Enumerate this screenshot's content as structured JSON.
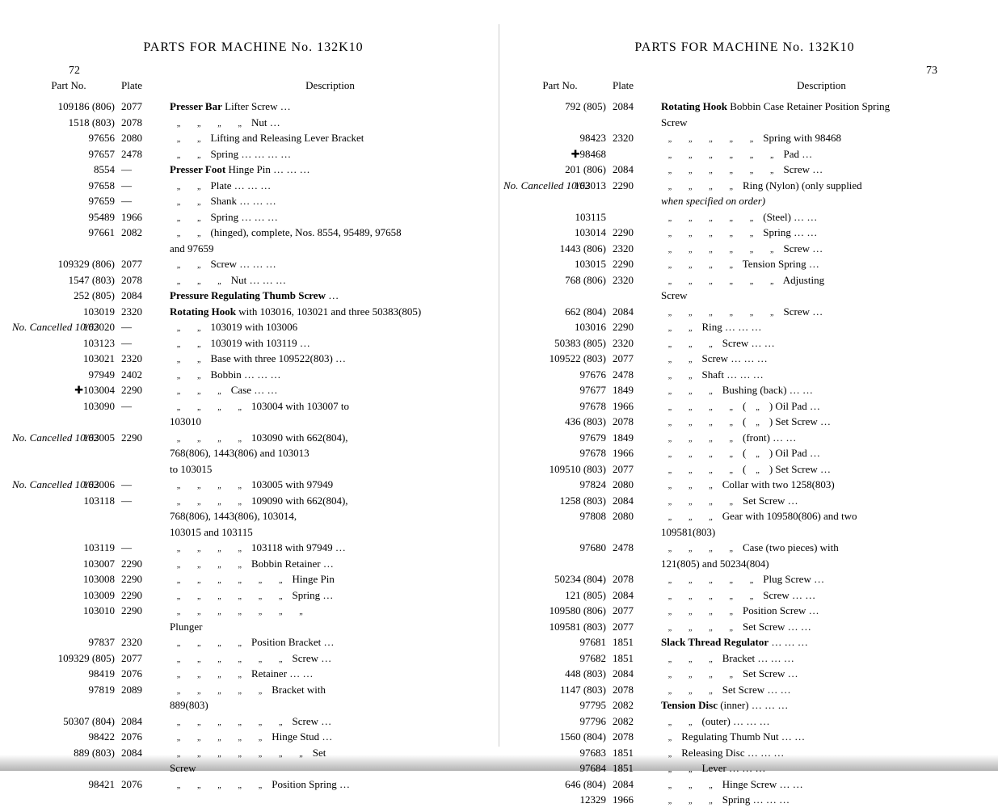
{
  "left_page": {
    "page_number": "72",
    "title": "PARTS FOR MACHINE No. 132K10",
    "headers": {
      "col1": "Part No.",
      "col2": "Plate",
      "col3": "Description"
    },
    "rows": [
      {
        "part": "109186 (806)",
        "plate": "2077",
        "desc": "Presser Bar Lifter Screw …",
        "bold_start": "Presser Bar"
      },
      {
        "part": "1518 (803)",
        "plate": "2078",
        "desc": "\"    \"    \"    \"    Nut   …"
      },
      {
        "part": "97656",
        "plate": "2080",
        "desc": "\"    \"    Lifting and Releasing Lever Bracket"
      },
      {
        "part": "97657",
        "plate": "2478",
        "desc": "\"    \"    Spring   …   …   …   …"
      },
      {
        "part": "",
        "plate": "",
        "desc": ""
      },
      {
        "part": "8554",
        "plate": "—",
        "desc": "Presser Foot Hinge Pin   …   …   …",
        "bold_start": "Presser Foot"
      },
      {
        "part": "97658",
        "plate": "—",
        "desc": "\"    \"    Plate   …   …   …"
      },
      {
        "part": "97659",
        "plate": "—",
        "desc": "\"    \"    Shank   …   …   …"
      },
      {
        "part": "95489",
        "plate": "1966",
        "desc": "\"    \"    Spring   …   …   …"
      },
      {
        "part": "97661",
        "plate": "2082",
        "desc": "\"    \"    (hinged), complete, Nos. 8554, 95489, 97658"
      },
      {
        "part": "",
        "plate": "",
        "desc": "                                                  and 97659"
      },
      {
        "part": "109329 (806)",
        "plate": "2077",
        "desc": "\"    \"    Screw   …   …   …"
      },
      {
        "part": "1547 (803)",
        "plate": "2078",
        "desc": "\"    \"    \"    Nut   …   …   …"
      },
      {
        "part": "",
        "plate": "",
        "desc": ""
      },
      {
        "part": "252 (805)",
        "plate": "2084",
        "desc": "Pressure Regulating Thumb Screw   …",
        "bold_start": "Pressure Regulating Thumb Screw"
      },
      {
        "part": "",
        "plate": "",
        "desc": ""
      },
      {
        "part": "103019",
        "plate": "2320",
        "desc": "Rotating Hook with 103016, 103021 and three 50383(805)",
        "bold_start": "Rotating Hook"
      },
      {
        "part": "103020",
        "plate": "—",
        "desc": "\"    \"    103019 with 103006",
        "hand": "No. Cancelled 10/62"
      },
      {
        "part": "103123",
        "plate": "—",
        "desc": "\"    \"    103019 with 103119   …"
      },
      {
        "part": "103021",
        "plate": "2320",
        "desc": "\"    \"    Base with three 109522(803)   …"
      },
      {
        "part": "97949",
        "plate": "2402",
        "desc": "\"    \"    Bobbin   …   …   …"
      },
      {
        "part": "✚103004",
        "plate": "2290",
        "desc": "\"    \"    \"    Case   …   …"
      },
      {
        "part": "103090",
        "plate": "—",
        "desc": "\"    \"    \"    \"    103004 with 103007 to"
      },
      {
        "part": "",
        "plate": "",
        "desc": "                                                  103010"
      },
      {
        "part": "103005",
        "plate": "2290",
        "desc": "\"    \"    \"    \"    103090 with 662(804),",
        "hand": "No. Cancelled 10/62"
      },
      {
        "part": "",
        "plate": "",
        "desc": "                              768(806), 1443(806) and 103013"
      },
      {
        "part": "",
        "plate": "",
        "desc": "                                                  to 103015"
      },
      {
        "part": "103006",
        "plate": "—",
        "desc": "\"    \"    \"    \"    103005 with 97949",
        "hand": "No. Cancelled 10/62"
      },
      {
        "part": "103118",
        "plate": "—",
        "desc": "\"    \"    \"    \"    109090 with 662(804),"
      },
      {
        "part": "",
        "plate": "",
        "desc": "                              768(806), 1443(806), 103014,"
      },
      {
        "part": "",
        "plate": "",
        "desc": "                              103015 and 103115"
      },
      {
        "part": "103119",
        "plate": "—",
        "desc": "\"    \"    \"    \"    103118 with 97949   …"
      },
      {
        "part": "103007",
        "plate": "2290",
        "desc": "\"    \"    \"    \"    Bobbin Retainer   …"
      },
      {
        "part": "103008",
        "plate": "2290",
        "desc": "\"    \"    \"    \"    \"    \"    Hinge Pin"
      },
      {
        "part": "103009",
        "plate": "2290",
        "desc": "\"    \"    \"    \"    \"    \"    Spring …"
      },
      {
        "part": "103010",
        "plate": "2290",
        "desc": "\"    \"    \"    \"    \"    \"    \""
      },
      {
        "part": "",
        "plate": "",
        "desc": "                                                  Plunger"
      },
      {
        "part": "97837",
        "plate": "2320",
        "desc": "\"    \"    \"    \"    Position Bracket   …"
      },
      {
        "part": "109329 (805)",
        "plate": "2077",
        "desc": "\"    \"    \"    \"    \"    \"    Screw …"
      },
      {
        "part": "98419",
        "plate": "2076",
        "desc": "\"    \"    \"    \"    Retainer   …   …"
      },
      {
        "part": "97819",
        "plate": "2089",
        "desc": "\"    \"    \"    \"    \"    Bracket with"
      },
      {
        "part": "",
        "plate": "",
        "desc": "                                                  889(803)"
      },
      {
        "part": "50307 (804)",
        "plate": "2084",
        "desc": "\"    \"    \"    \"    \"    \"    Screw …"
      },
      {
        "part": "98422",
        "plate": "2076",
        "desc": "\"    \"    \"    \"    \"    Hinge Stud   …"
      },
      {
        "part": "889 (803)",
        "plate": "2084",
        "desc": "\"    \"    \"    \"    \"    \"    \"    Set"
      },
      {
        "part": "",
        "plate": "",
        "desc": "                                                  Screw"
      },
      {
        "part": "98421",
        "plate": "2076",
        "desc": "\"    \"    \"    \"    \"    Position Spring …"
      }
    ]
  },
  "right_page": {
    "page_number": "73",
    "title": "PARTS FOR MACHINE No. 132K10",
    "headers": {
      "col1": "Part No.",
      "col2": "Plate",
      "col3": "Description"
    },
    "rows": [
      {
        "part": "792 (805)",
        "plate": "2084",
        "desc": "Rotating Hook Bobbin Case Retainer Position Spring",
        "bold_start": "Rotating Hook"
      },
      {
        "part": "",
        "plate": "",
        "desc": "                                                  Screw"
      },
      {
        "part": "98423",
        "plate": "2320",
        "desc": "\"    \"    \"    \"    \"    Spring with 98468"
      },
      {
        "part": "✚98468",
        "plate": "",
        "desc": "\"    \"    \"    \"    \"    \"    Pad   …"
      },
      {
        "part": "201 (806)",
        "plate": "2084",
        "desc": "\"    \"    \"    \"    \"    \"    Screw …"
      },
      {
        "part": "103013",
        "plate": "2290",
        "desc": "\"    \"    \"    \"    Ring (Nylon) (only supplied",
        "hand": "No. Cancelled 10/62"
      },
      {
        "part": "",
        "plate": "",
        "desc": "                                    when specified on order)",
        "italic": true
      },
      {
        "part": "103115",
        "plate": "",
        "desc": "\"    \"    \"    \"    \"    (Steel)    …   …"
      },
      {
        "part": "103014",
        "plate": "2290",
        "desc": "\"    \"    \"    \"    \"    Spring   …   …"
      },
      {
        "part": "1443 (806)",
        "plate": "2320",
        "desc": "\"    \"    \"    \"    \"    \"    Screw …"
      },
      {
        "part": "103015",
        "plate": "2290",
        "desc": "\"    \"    \"    \"    Tension Spring   …"
      },
      {
        "part": "768 (806)",
        "plate": "2320",
        "desc": "\"    \"    \"    \"    \"    \"    Adjusting"
      },
      {
        "part": "",
        "plate": "",
        "desc": "                                                  Screw"
      },
      {
        "part": "662 (804)",
        "plate": "2084",
        "desc": "\"    \"    \"    \"    \"    \"    Screw …"
      },
      {
        "part": "103016",
        "plate": "2290",
        "desc": "\"    \"    Ring   …   …   …"
      },
      {
        "part": "50383 (805)",
        "plate": "2320",
        "desc": "\"    \"    \"    Screw   …   …"
      },
      {
        "part": "109522 (803)",
        "plate": "2077",
        "desc": "\"    \"    Screw   …   …   …"
      },
      {
        "part": "97676",
        "plate": "2478",
        "desc": "\"    \"    Shaft   …   …   …"
      },
      {
        "part": "97677",
        "plate": "1849",
        "desc": "\"    \"    \"    Bushing (back)   …   …"
      },
      {
        "part": "97678",
        "plate": "1966",
        "desc": "\"    \"    \"    \"    ( \" ) Oil Pad   …"
      },
      {
        "part": "436 (803)",
        "plate": "2078",
        "desc": "\"    \"    \"    \"    ( \" ) Set Screw …"
      },
      {
        "part": "97679",
        "plate": "1849",
        "desc": "\"    \"    \"    \"    (front)   …   …"
      },
      {
        "part": "97678",
        "plate": "1966",
        "desc": "\"    \"    \"    \"    ( \" ) Oil Pad   …"
      },
      {
        "part": "109510 (803)",
        "plate": "2077",
        "desc": "\"    \"    \"    \"    ( \" ) Set Screw …"
      },
      {
        "part": "97824",
        "plate": "2080",
        "desc": "\"    \"    \"    Collar with two 1258(803)"
      },
      {
        "part": "1258 (803)",
        "plate": "2084",
        "desc": "\"    \"    \"    \"    Set Screw   …"
      },
      {
        "part": "97808",
        "plate": "2080",
        "desc": "\"    \"    \"    Gear with 109580(806) and two"
      },
      {
        "part": "",
        "plate": "",
        "desc": "                                                  109581(803)"
      },
      {
        "part": "97680",
        "plate": "2478",
        "desc": "\"    \"    \"    \"    Case (two pieces) with"
      },
      {
        "part": "",
        "plate": "",
        "desc": "                                    121(805) and 50234(804)"
      },
      {
        "part": "50234 (804)",
        "plate": "2078",
        "desc": "\"    \"    \"    \"    \"    Plug Screw …"
      },
      {
        "part": "121 (805)",
        "plate": "2084",
        "desc": "\"    \"    \"    \"    \"    Screw   …   …"
      },
      {
        "part": "109580 (806)",
        "plate": "2077",
        "desc": "\"    \"    \"    \"    Position Screw   …"
      },
      {
        "part": "109581 (803)",
        "plate": "2077",
        "desc": "\"    \"    \"    \"    Set Screw   …   …"
      },
      {
        "part": "",
        "plate": "",
        "desc": ""
      },
      {
        "part": "97681",
        "plate": "1851",
        "desc": "Slack Thread Regulator   …   …   …",
        "bold_start": "Slack Thread Regulator"
      },
      {
        "part": "97682",
        "plate": "1851",
        "desc": "\"    \"    \"    Bracket   …   …   …"
      },
      {
        "part": "448 (803)",
        "plate": "2084",
        "desc": "\"    \"    \"    \"    Set Screw   …"
      },
      {
        "part": "1147 (803)",
        "plate": "2078",
        "desc": "\"    \"    \"    Set Screw   …   …"
      },
      {
        "part": "",
        "plate": "",
        "desc": ""
      },
      {
        "part": "97795",
        "plate": "2082",
        "desc": "Tension Disc (inner)   …   …   …",
        "bold_start": "Tension Disc"
      },
      {
        "part": "97796",
        "plate": "2082",
        "desc": "\"    \"    (outer)   …   …   …"
      },
      {
        "part": "1560 (804)",
        "plate": "2078",
        "desc": "\"    Regulating Thumb Nut   …   …"
      },
      {
        "part": "97683",
        "plate": "1851",
        "desc": "\"    Releasing Disc   …   …   …"
      },
      {
        "part": "97684",
        "plate": "1851",
        "desc": "\"    \"    Lever   …   …   …"
      },
      {
        "part": "646 (804)",
        "plate": "2084",
        "desc": "\"    \"    \"    Hinge Screw   …   …"
      },
      {
        "part": "12329",
        "plate": "1966",
        "desc": "\"    \"    \"    Spring   …   …   …"
      }
    ]
  }
}
